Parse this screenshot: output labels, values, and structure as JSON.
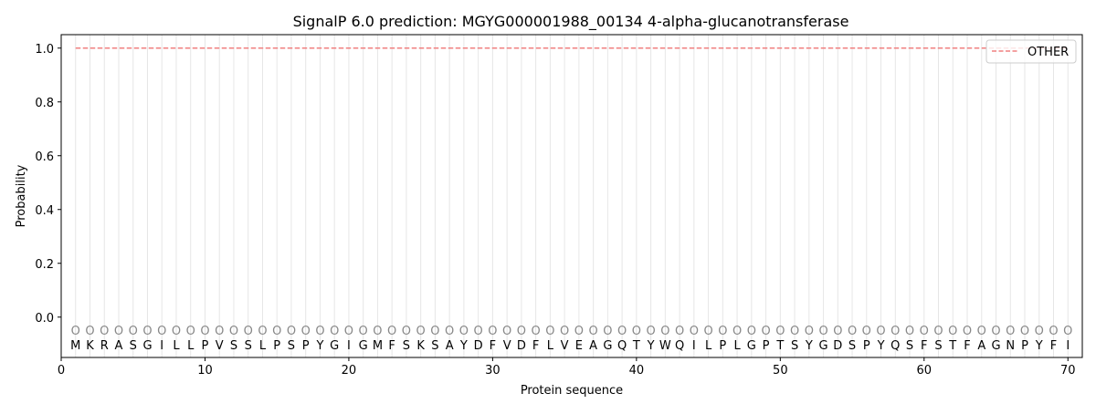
{
  "chart_data": {
    "type": "line",
    "title": "SignalP 6.0 prediction: MGYG000001988_00134 4-alpha-glucanotransferase",
    "xlabel": "Protein sequence",
    "ylabel": "Probability",
    "xlim": [
      0,
      71
    ],
    "ylim": [
      -0.15,
      1.05
    ],
    "xticks": [
      0,
      10,
      20,
      30,
      40,
      50,
      60,
      70
    ],
    "yticks": [
      0.0,
      0.2,
      0.4,
      0.6,
      0.8,
      1.0
    ],
    "ytick_labels": [
      "0.0",
      "0.2",
      "0.4",
      "0.6",
      "0.8",
      "1.0"
    ],
    "grid": "vertical lines at each residue",
    "legend_position": "top-right",
    "sequence": [
      "M",
      "K",
      "R",
      "A",
      "S",
      "G",
      "I",
      "L",
      "L",
      "P",
      "V",
      "S",
      "S",
      "L",
      "P",
      "S",
      "P",
      "Y",
      "G",
      "I",
      "G",
      "M",
      "F",
      "S",
      "K",
      "S",
      "A",
      "Y",
      "D",
      "F",
      "V",
      "D",
      "F",
      "L",
      "V",
      "E",
      "A",
      "G",
      "Q",
      "T",
      "Y",
      "W",
      "Q",
      "I",
      "L",
      "P",
      "L",
      "G",
      "P",
      "T",
      "S",
      "Y",
      "G",
      "D",
      "S",
      "P",
      "Y",
      "Q",
      "S",
      "F",
      "S",
      "T",
      "F",
      "A",
      "G",
      "N",
      "P",
      "Y",
      "F",
      "I"
    ],
    "residue_label": "O",
    "series": [
      {
        "name": "OTHER",
        "color": "#f08080",
        "style": "dashed",
        "x_range": [
          1,
          70
        ],
        "value": 1.0
      }
    ]
  }
}
